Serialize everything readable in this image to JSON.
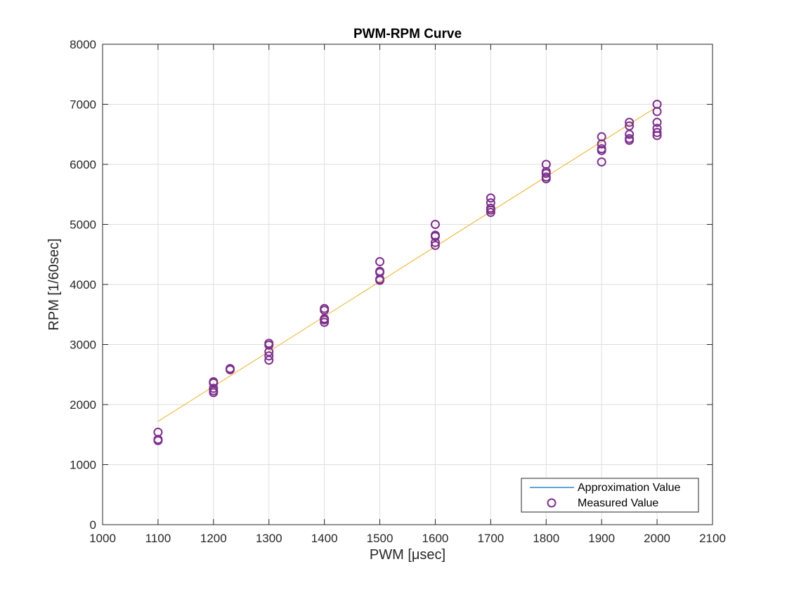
{
  "chart_data": {
    "type": "scatter",
    "title": "PWM-RPM Curve",
    "xlabel": "PWM [μsec]",
    "ylabel": "RPM [1/60sec]",
    "xlim": [
      1000,
      2100
    ],
    "ylim": [
      0,
      8000
    ],
    "xticks": [
      1000,
      1100,
      1200,
      1300,
      1400,
      1500,
      1600,
      1700,
      1800,
      1900,
      2000,
      2100
    ],
    "yticks": [
      0,
      1000,
      2000,
      3000,
      4000,
      5000,
      6000,
      7000,
      8000
    ],
    "grid": true,
    "legend_position": "bottom-right",
    "series": [
      {
        "name": "Approximation Value",
        "kind": "line",
        "legend_color": "#0072bd",
        "color": "#edb120",
        "x": [
          1100,
          2000
        ],
        "y": [
          1720,
          6960
        ]
      },
      {
        "name": "Measured Value",
        "kind": "scatter",
        "color": "#7e2f8e",
        "x": [
          1100,
          1100,
          1100,
          1200,
          1200,
          1200,
          1200,
          1200,
          1230,
          1230,
          1300,
          1300,
          1300,
          1300,
          1300,
          1400,
          1400,
          1400,
          1400,
          1400,
          1500,
          1500,
          1500,
          1500,
          1500,
          1600,
          1600,
          1600,
          1600,
          1600,
          1700,
          1700,
          1700,
          1700,
          1700,
          1800,
          1800,
          1800,
          1800,
          1800,
          1900,
          1900,
          1900,
          1900,
          1900,
          1950,
          1950,
          1950,
          1950,
          1950,
          2000,
          2000,
          2000,
          2000,
          2000,
          2000
        ],
        "y": [
          1540,
          1420,
          1400,
          2380,
          2360,
          2270,
          2230,
          2200,
          2600,
          2580,
          3020,
          2990,
          2880,
          2810,
          2740,
          3600,
          3570,
          3430,
          3410,
          3370,
          4380,
          4220,
          4200,
          4090,
          4070,
          5000,
          4820,
          4800,
          4700,
          4650,
          5440,
          5360,
          5270,
          5240,
          5200,
          6000,
          5880,
          5850,
          5790,
          5760,
          6460,
          6340,
          6260,
          6230,
          6040,
          6700,
          6640,
          6500,
          6430,
          6400,
          7000,
          6880,
          6700,
          6600,
          6530,
          6480
        ]
      }
    ]
  }
}
